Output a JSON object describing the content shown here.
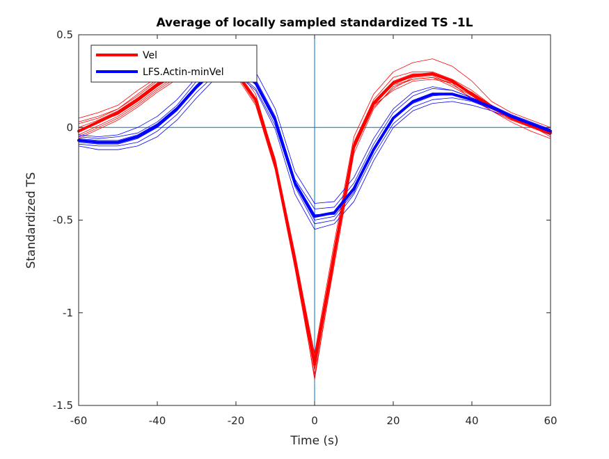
{
  "chart_data": {
    "type": "line",
    "title": "Average of locally sampled standardized TS -1L",
    "xlabel": "Time (s)",
    "ylabel": "Standardized TS",
    "xlim": [
      -60,
      60
    ],
    "ylim": [
      -1.5,
      0.5
    ],
    "xticks": [
      -60,
      -40,
      -20,
      0,
      20,
      40,
      60
    ],
    "yticks": [
      -1.5,
      -1,
      -0.5,
      0,
      0.5
    ],
    "xtick_labels": [
      "-60",
      "-40",
      "-20",
      "0",
      "20",
      "40",
      "60"
    ],
    "ytick_labels": [
      "-1.5",
      "-1",
      "-0.5",
      "0",
      "0.5"
    ],
    "grid": false,
    "legend_position": "top-left",
    "reference_lines": {
      "x": 0,
      "y": 0
    },
    "x": [
      -60,
      -55,
      -50,
      -45,
      -40,
      -35,
      -30,
      -25,
      -20,
      -15,
      -10,
      -5,
      0,
      5,
      10,
      15,
      20,
      25,
      30,
      35,
      40,
      45,
      50,
      55,
      60
    ],
    "series": [
      {
        "name": "Vel",
        "color": "#ff0000",
        "values": [
          -0.02,
          0.03,
          0.08,
          0.15,
          0.23,
          0.29,
          0.32,
          0.33,
          0.3,
          0.15,
          -0.2,
          -0.72,
          -1.28,
          -0.68,
          -0.1,
          0.13,
          0.24,
          0.28,
          0.29,
          0.25,
          0.18,
          0.11,
          0.05,
          0.01,
          -0.03
        ],
        "samples": [
          [
            0.03,
            0.06,
            0.1,
            0.18,
            0.26,
            0.32,
            0.35,
            0.36,
            0.33,
            0.18,
            -0.18,
            -0.7,
            -1.22,
            -0.62,
            -0.05,
            0.18,
            0.3,
            0.35,
            0.37,
            0.33,
            0.25,
            0.14,
            0.08,
            0.04,
            0.0
          ],
          [
            -0.05,
            0.0,
            0.05,
            0.12,
            0.2,
            0.27,
            0.3,
            0.31,
            0.28,
            0.12,
            -0.23,
            -0.76,
            -1.34,
            -0.74,
            -0.14,
            0.1,
            0.22,
            0.26,
            0.27,
            0.22,
            0.16,
            0.09,
            0.03,
            -0.02,
            -0.06
          ],
          [
            0.05,
            0.08,
            0.12,
            0.2,
            0.27,
            0.31,
            0.33,
            0.34,
            0.31,
            0.14,
            -0.22,
            -0.73,
            -1.27,
            -0.66,
            -0.08,
            0.15,
            0.27,
            0.3,
            0.3,
            0.26,
            0.2,
            0.12,
            0.06,
            0.02,
            -0.02
          ],
          [
            -0.04,
            0.01,
            0.06,
            0.13,
            0.21,
            0.28,
            0.33,
            0.34,
            0.3,
            0.16,
            -0.17,
            -0.68,
            -1.23,
            -0.66,
            -0.11,
            0.12,
            0.23,
            0.26,
            0.27,
            0.24,
            0.15,
            0.09,
            0.04,
            0.0,
            -0.04
          ],
          [
            0.0,
            0.04,
            0.09,
            0.16,
            0.24,
            0.3,
            0.32,
            0.33,
            0.29,
            0.14,
            -0.21,
            -0.74,
            -1.31,
            -0.7,
            -0.12,
            0.11,
            0.21,
            0.27,
            0.28,
            0.23,
            0.17,
            0.1,
            0.05,
            0.01,
            -0.05
          ],
          [
            -0.06,
            -0.01,
            0.04,
            0.11,
            0.19,
            0.26,
            0.3,
            0.32,
            0.3,
            0.16,
            -0.19,
            -0.71,
            -1.36,
            -0.72,
            -0.1,
            0.12,
            0.2,
            0.25,
            0.26,
            0.24,
            0.19,
            0.12,
            0.06,
            0.02,
            -0.02
          ],
          [
            0.02,
            0.05,
            0.1,
            0.17,
            0.25,
            0.3,
            0.31,
            0.32,
            0.29,
            0.13,
            -0.2,
            -0.73,
            -1.26,
            -0.67,
            -0.08,
            0.14,
            0.25,
            0.29,
            0.29,
            0.25,
            0.18,
            0.11,
            0.05,
            0.01,
            -0.03
          ],
          [
            -0.02,
            0.03,
            0.07,
            0.14,
            0.22,
            0.29,
            0.33,
            0.34,
            0.31,
            0.16,
            -0.19,
            -0.72,
            -1.29,
            -0.69,
            -0.11,
            0.12,
            0.24,
            0.28,
            0.29,
            0.25,
            0.18,
            0.11,
            0.05,
            0.01,
            -0.03
          ]
        ]
      },
      {
        "name": "LFS.Actin-minVel",
        "color": "#0000ff",
        "values": [
          -0.07,
          -0.08,
          -0.08,
          -0.05,
          0.01,
          0.1,
          0.22,
          0.32,
          0.33,
          0.24,
          0.04,
          -0.3,
          -0.48,
          -0.46,
          -0.33,
          -0.12,
          0.05,
          0.14,
          0.18,
          0.18,
          0.15,
          0.11,
          0.06,
          0.02,
          -0.02
        ],
        "samples": [
          [
            -0.04,
            -0.05,
            -0.04,
            0.0,
            0.06,
            0.15,
            0.27,
            0.37,
            0.38,
            0.3,
            0.1,
            -0.24,
            -0.41,
            -0.4,
            -0.27,
            -0.06,
            0.1,
            0.19,
            0.22,
            0.2,
            0.16,
            0.12,
            0.07,
            0.03,
            -0.01
          ],
          [
            -0.1,
            -0.12,
            -0.12,
            -0.1,
            -0.05,
            0.04,
            0.16,
            0.27,
            0.29,
            0.2,
            -0.01,
            -0.36,
            -0.55,
            -0.52,
            -0.4,
            -0.18,
            0.0,
            0.09,
            0.13,
            0.14,
            0.12,
            0.09,
            0.05,
            0.01,
            -0.04
          ],
          [
            -0.05,
            -0.06,
            -0.05,
            -0.03,
            0.03,
            0.12,
            0.25,
            0.34,
            0.35,
            0.26,
            0.06,
            -0.28,
            -0.44,
            -0.43,
            -0.3,
            -0.09,
            0.08,
            0.17,
            0.21,
            0.2,
            0.16,
            0.12,
            0.06,
            0.02,
            -0.01
          ],
          [
            -0.09,
            -0.1,
            -0.1,
            -0.08,
            -0.02,
            0.07,
            0.19,
            0.29,
            0.3,
            0.21,
            0.01,
            -0.32,
            -0.52,
            -0.5,
            -0.36,
            -0.15,
            0.02,
            0.11,
            0.15,
            0.16,
            0.14,
            0.1,
            0.05,
            0.01,
            -0.03
          ],
          [
            -0.06,
            -0.07,
            -0.07,
            -0.04,
            0.02,
            0.11,
            0.23,
            0.33,
            0.34,
            0.25,
            0.05,
            -0.3,
            -0.47,
            -0.47,
            -0.34,
            -0.13,
            0.05,
            0.14,
            0.18,
            0.18,
            0.15,
            0.11,
            0.06,
            0.02,
            -0.02
          ],
          [
            -0.08,
            -0.09,
            -0.09,
            -0.06,
            0.0,
            0.09,
            0.21,
            0.31,
            0.32,
            0.23,
            0.03,
            -0.31,
            -0.5,
            -0.48,
            -0.35,
            -0.11,
            0.05,
            0.13,
            0.17,
            0.18,
            0.15,
            0.11,
            0.06,
            0.02,
            -0.02
          ]
        ]
      }
    ]
  }
}
